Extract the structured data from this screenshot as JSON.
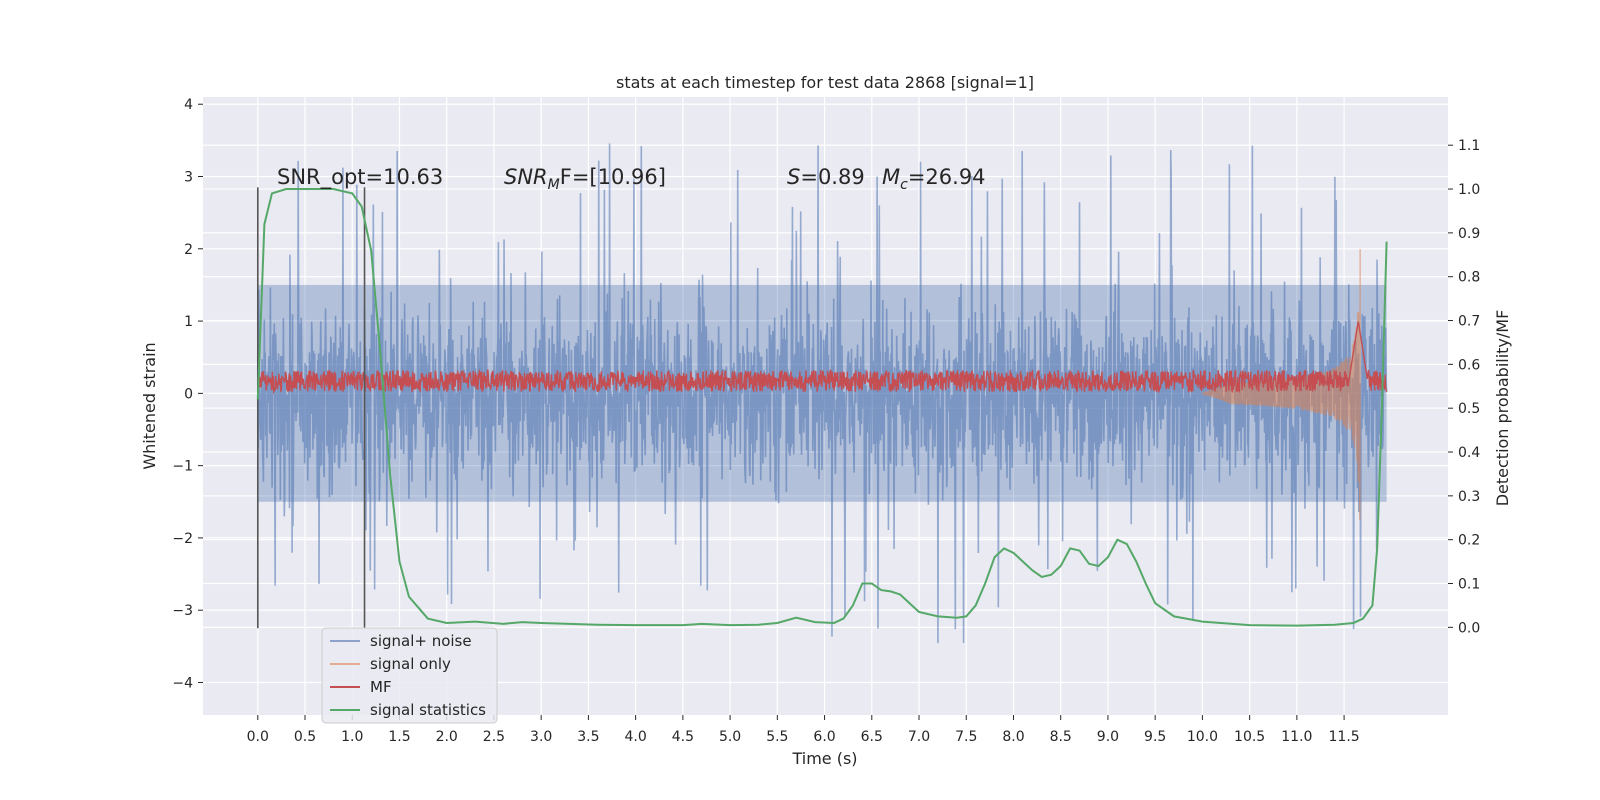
{
  "chart_data": {
    "type": "line",
    "title": "stats at each timestep for test data 2868 [signal=1]",
    "xlabel": "Time (s)",
    "ylabel_left": "Whitened strain",
    "ylabel_right": "Detection probability/MF",
    "xlim": [
      -0.58,
      12.6
    ],
    "ylim_left": [
      -4.45,
      4.1
    ],
    "ylim_right": [
      -0.2,
      1.21
    ],
    "grid": true,
    "style": "seaborn-darkgrid",
    "x_ticks": [
      "0.0",
      "0.5",
      "1.0",
      "1.5",
      "2.0",
      "2.5",
      "3.0",
      "3.5",
      "4.0",
      "4.5",
      "5.0",
      "5.5",
      "6.0",
      "6.5",
      "7.0",
      "7.5",
      "8.0",
      "8.5",
      "9.0",
      "9.5",
      "10.0",
      "10.5",
      "11.0",
      "11.5"
    ],
    "y_ticks_left": [
      "4",
      "3",
      "2",
      "1",
      "0",
      "−1",
      "−2",
      "−3",
      "−4"
    ],
    "y_ticks_right": [
      "1.1",
      "1.0",
      "0.9",
      "0.8",
      "0.7",
      "0.6",
      "0.5",
      "0.4",
      "0.3",
      "0.2",
      "0.1",
      "0.0"
    ],
    "annotations": {
      "snr_opt": "SNR_opt=10.63",
      "snr_mf_main": "SNR",
      "snr_mf_sub": "M",
      "snr_mf_rest": "F=[10.96]",
      "s_label": "S",
      "s_rest": "=0.89",
      "mc_label": "M",
      "mc_sub": "c",
      "mc_rest": "=26.94"
    },
    "window_lines_x": [
      0.0,
      1.13
    ],
    "series": [
      {
        "name": "signal+ noise",
        "color": "#4c72b0",
        "description_of_shape": "noisy band roughly ±1.5 with spikes to ±3.7 spanning x 0 to 11.95",
        "amplitude_envelope": 1.5,
        "max_spike": 3.7
      },
      {
        "name": "signal only",
        "color": "#dd8452",
        "chirp_peak_x": 11.65,
        "chirp_peak_amplitude": 2.1
      },
      {
        "name": "MF",
        "color": "#c44e52",
        "baseline": 0.15,
        "band": [
          0.02,
          0.32
        ],
        "peak_x": 11.65,
        "peak_value": 1.0
      },
      {
        "name": "signal statistics",
        "color": "#55a868",
        "axis": "right",
        "x": [
          0.0,
          0.07,
          0.15,
          0.3,
          0.5,
          0.8,
          1.0,
          1.1,
          1.2,
          1.3,
          1.4,
          1.5,
          1.6,
          1.8,
          2.0,
          2.3,
          2.6,
          2.8,
          3.0,
          3.3,
          3.6,
          4.0,
          4.5,
          4.7,
          5.0,
          5.3,
          5.5,
          5.7,
          5.9,
          6.1,
          6.2,
          6.3,
          6.4,
          6.5,
          6.6,
          6.7,
          6.8,
          6.9,
          7.0,
          7.2,
          7.4,
          7.5,
          7.6,
          7.7,
          7.8,
          7.9,
          8.0,
          8.1,
          8.2,
          8.3,
          8.4,
          8.5,
          8.6,
          8.7,
          8.8,
          8.9,
          9.0,
          9.1,
          9.2,
          9.3,
          9.4,
          9.5,
          9.7,
          10.0,
          10.5,
          11.0,
          11.4,
          11.6,
          11.7,
          11.75,
          11.8,
          11.85,
          11.9,
          11.95
        ],
        "values": [
          0.52,
          0.92,
          0.99,
          1.0,
          1.0,
          1.0,
          0.99,
          0.96,
          0.86,
          0.62,
          0.35,
          0.15,
          0.07,
          0.02,
          0.01,
          0.013,
          0.008,
          0.012,
          0.01,
          0.008,
          0.006,
          0.005,
          0.005,
          0.008,
          0.005,
          0.006,
          0.01,
          0.022,
          0.012,
          0.01,
          0.02,
          0.05,
          0.1,
          0.1,
          0.085,
          0.082,
          0.075,
          0.055,
          0.035,
          0.025,
          0.022,
          0.025,
          0.05,
          0.1,
          0.16,
          0.18,
          0.17,
          0.15,
          0.13,
          0.115,
          0.12,
          0.14,
          0.18,
          0.175,
          0.145,
          0.14,
          0.16,
          0.2,
          0.19,
          0.15,
          0.1,
          0.055,
          0.025,
          0.013,
          0.005,
          0.004,
          0.006,
          0.01,
          0.02,
          0.035,
          0.05,
          0.18,
          0.5,
          0.88
        ]
      }
    ],
    "legend": {
      "placement": "lower-left",
      "entries": [
        "signal+ noise",
        "signal only",
        "MF",
        "signal statistics"
      ]
    }
  },
  "colors": {
    "plot_bg": "#eaeaf2",
    "grid": "#ffffff",
    "noise": "#4c72b0",
    "signal": "#dd8452",
    "mf": "#c44e52",
    "stat": "#55a868",
    "window_line": "#555555"
  }
}
